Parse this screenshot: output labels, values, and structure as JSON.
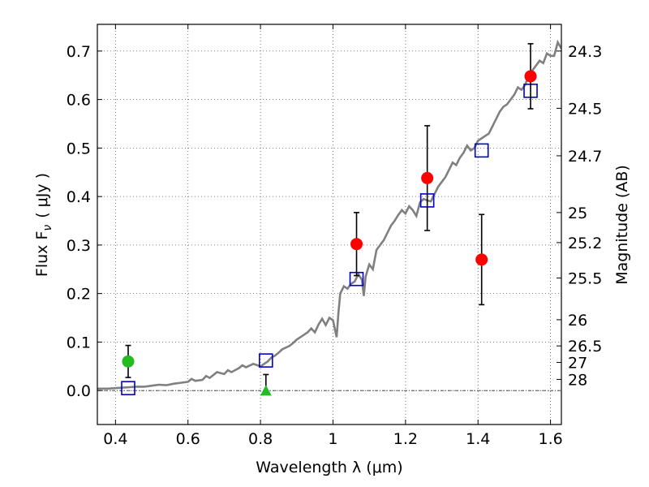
{
  "chart_data": {
    "type": "scatter",
    "xlabel": "Wavelength  λ (μm)",
    "ylabel_left": "Flux  F",
    "ylabel_left_sub": "ν",
    "ylabel_left_unit": "( μJy )",
    "ylabel_right": "Magnitude (AB)",
    "xlim": [
      0.35,
      1.63
    ],
    "ylim": [
      -0.07,
      0.755
    ],
    "grid": true,
    "x_ticks": [
      0.4,
      0.6,
      0.8,
      1.0,
      1.2,
      1.4,
      1.6
    ],
    "x_tick_labels": [
      "0.4",
      "0.6",
      "0.8",
      "1",
      "1.2",
      "1.4",
      "1.6"
    ],
    "y_ticks": [
      0.0,
      0.1,
      0.2,
      0.3,
      0.4,
      0.5,
      0.6,
      0.7
    ],
    "y_tick_labels": [
      "0.0",
      "0.1",
      "0.2",
      "0.3",
      "0.4",
      "0.5",
      "0.6",
      "0.7"
    ],
    "right_ticks": [
      {
        "label": "24.3",
        "flux": 0.7
      },
      {
        "label": "24.5",
        "flux": 0.582
      },
      {
        "label": "24.7",
        "flux": 0.484
      },
      {
        "label": "25",
        "flux": 0.367
      },
      {
        "label": "25.2",
        "flux": 0.305
      },
      {
        "label": "25.5",
        "flux": 0.232
      },
      {
        "label": "26",
        "flux": 0.146
      },
      {
        "label": "26.5",
        "flux": 0.092
      },
      {
        "label": "27",
        "flux": 0.058
      },
      {
        "label": "28",
        "flux": 0.023
      }
    ],
    "series": [
      {
        "kind": "line",
        "color": "#808080",
        "points": [
          [
            0.35,
            0.004
          ],
          [
            0.38,
            0.004
          ],
          [
            0.4,
            0.005
          ],
          [
            0.42,
            0.006
          ],
          [
            0.44,
            0.007
          ],
          [
            0.46,
            0.008
          ],
          [
            0.48,
            0.008
          ],
          [
            0.5,
            0.01
          ],
          [
            0.52,
            0.012
          ],
          [
            0.54,
            0.011
          ],
          [
            0.56,
            0.014
          ],
          [
            0.58,
            0.016
          ],
          [
            0.6,
            0.018
          ],
          [
            0.61,
            0.024
          ],
          [
            0.62,
            0.02
          ],
          [
            0.64,
            0.022
          ],
          [
            0.65,
            0.03
          ],
          [
            0.66,
            0.026
          ],
          [
            0.68,
            0.038
          ],
          [
            0.7,
            0.034
          ],
          [
            0.71,
            0.042
          ],
          [
            0.72,
            0.038
          ],
          [
            0.74,
            0.046
          ],
          [
            0.75,
            0.052
          ],
          [
            0.76,
            0.048
          ],
          [
            0.78,
            0.055
          ],
          [
            0.8,
            0.05
          ],
          [
            0.81,
            0.055
          ],
          [
            0.82,
            0.06
          ],
          [
            0.83,
            0.068
          ],
          [
            0.84,
            0.072
          ],
          [
            0.85,
            0.078
          ],
          [
            0.86,
            0.085
          ],
          [
            0.88,
            0.092
          ],
          [
            0.89,
            0.098
          ],
          [
            0.9,
            0.105
          ],
          [
            0.91,
            0.11
          ],
          [
            0.92,
            0.115
          ],
          [
            0.93,
            0.12
          ],
          [
            0.94,
            0.128
          ],
          [
            0.95,
            0.12
          ],
          [
            0.96,
            0.136
          ],
          [
            0.97,
            0.148
          ],
          [
            0.98,
            0.135
          ],
          [
            0.99,
            0.15
          ],
          [
            1.0,
            0.145
          ],
          [
            1.01,
            0.11
          ],
          [
            1.015,
            0.16
          ],
          [
            1.02,
            0.2
          ],
          [
            1.03,
            0.215
          ],
          [
            1.04,
            0.21
          ],
          [
            1.05,
            0.22
          ],
          [
            1.06,
            0.225
          ],
          [
            1.07,
            0.24
          ],
          [
            1.08,
            0.228
          ],
          [
            1.085,
            0.195
          ],
          [
            1.09,
            0.235
          ],
          [
            1.1,
            0.26
          ],
          [
            1.11,
            0.25
          ],
          [
            1.12,
            0.29
          ],
          [
            1.13,
            0.3
          ],
          [
            1.14,
            0.31
          ],
          [
            1.15,
            0.325
          ],
          [
            1.16,
            0.34
          ],
          [
            1.17,
            0.35
          ],
          [
            1.18,
            0.362
          ],
          [
            1.19,
            0.372
          ],
          [
            1.2,
            0.365
          ],
          [
            1.21,
            0.38
          ],
          [
            1.22,
            0.372
          ],
          [
            1.23,
            0.36
          ],
          [
            1.24,
            0.388
          ],
          [
            1.25,
            0.395
          ],
          [
            1.26,
            0.392
          ],
          [
            1.27,
            0.39
          ],
          [
            1.28,
            0.405
          ],
          [
            1.29,
            0.42
          ],
          [
            1.3,
            0.43
          ],
          [
            1.31,
            0.44
          ],
          [
            1.32,
            0.455
          ],
          [
            1.33,
            0.47
          ],
          [
            1.34,
            0.465
          ],
          [
            1.35,
            0.48
          ],
          [
            1.36,
            0.49
          ],
          [
            1.37,
            0.505
          ],
          [
            1.38,
            0.495
          ],
          [
            1.39,
            0.5
          ],
          [
            1.4,
            0.515
          ],
          [
            1.41,
            0.52
          ],
          [
            1.42,
            0.525
          ],
          [
            1.43,
            0.53
          ],
          [
            1.44,
            0.545
          ],
          [
            1.45,
            0.56
          ],
          [
            1.46,
            0.575
          ],
          [
            1.47,
            0.585
          ],
          [
            1.48,
            0.59
          ],
          [
            1.49,
            0.6
          ],
          [
            1.5,
            0.61
          ],
          [
            1.51,
            0.625
          ],
          [
            1.52,
            0.62
          ],
          [
            1.53,
            0.63
          ],
          [
            1.54,
            0.65
          ],
          [
            1.55,
            0.66
          ],
          [
            1.56,
            0.67
          ],
          [
            1.57,
            0.68
          ],
          [
            1.58,
            0.675
          ],
          [
            1.59,
            0.695
          ],
          [
            1.6,
            0.69
          ],
          [
            1.61,
            0.69
          ],
          [
            1.62,
            0.718
          ],
          [
            1.63,
            0.705
          ]
        ]
      },
      {
        "kind": "open-square",
        "color": "#0000cc",
        "points": [
          [
            0.435,
            0.005
          ],
          [
            0.815,
            0.062
          ],
          [
            1.065,
            0.23
          ],
          [
            1.26,
            0.392
          ],
          [
            1.41,
            0.495
          ],
          [
            1.545,
            0.618
          ]
        ]
      },
      {
        "kind": "circle",
        "color": "#ff0000",
        "points": [
          [
            1.065,
            0.302
          ],
          [
            1.26,
            0.438
          ],
          [
            1.41,
            0.27
          ],
          [
            1.545,
            0.648
          ]
        ],
        "errors": [
          0.065,
          0.108,
          0.093,
          0.067
        ]
      },
      {
        "kind": "circle",
        "color": "#22bb22",
        "points": [
          [
            0.435,
            0.06
          ]
        ],
        "errors": [
          0.033
        ]
      },
      {
        "kind": "triangle",
        "color": "#22bb22",
        "points": [
          [
            0.815,
            -0.002
          ]
        ],
        "err_up": [
          0.035
        ]
      }
    ],
    "zero_line": 0.0
  }
}
